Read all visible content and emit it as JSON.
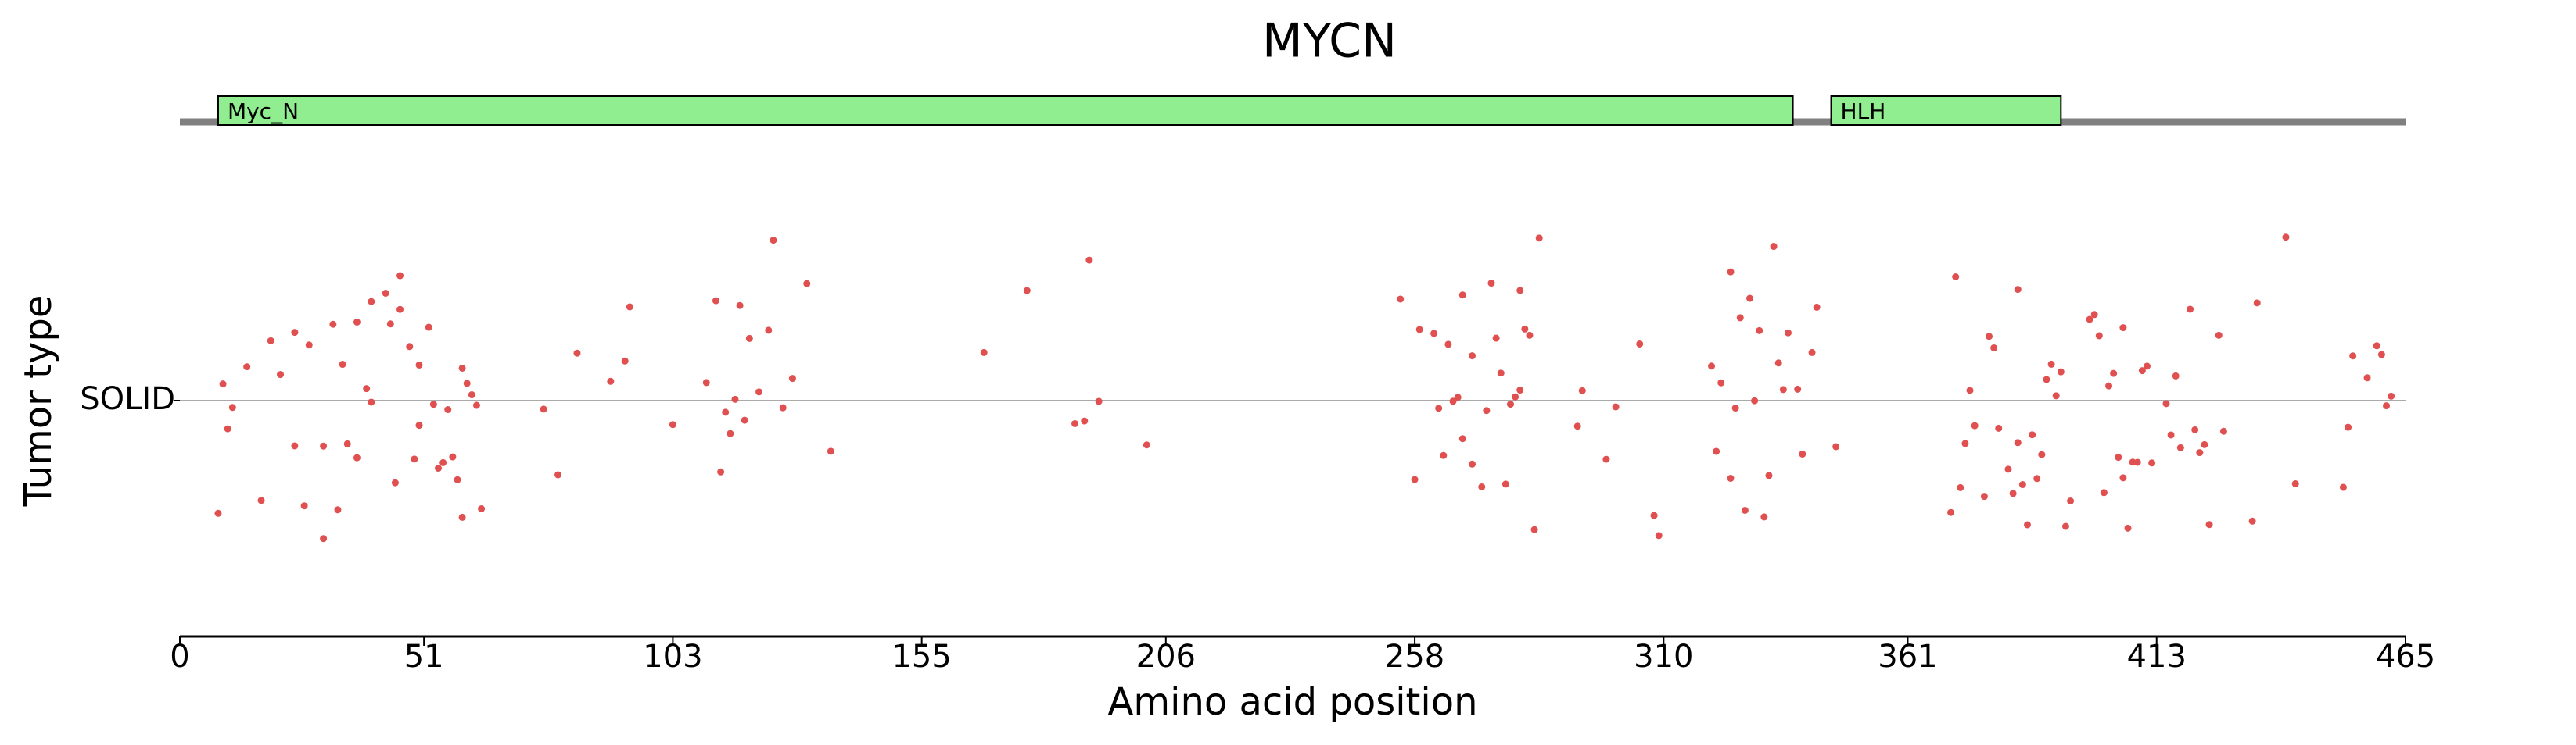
{
  "chart_data": {
    "type": "strip",
    "title": "MYCN",
    "xlabel": "Amino acid position",
    "ylabel": "Tumor type",
    "categories": [
      "SOLID"
    ],
    "xlim": [
      0,
      465
    ],
    "xticks": [
      0,
      51,
      103,
      155,
      206,
      258,
      310,
      361,
      413,
      465
    ],
    "backbone_color": "#808080",
    "domains": [
      {
        "name": "Myc_N",
        "start": 8,
        "end": 337,
        "color": "#90ee90"
      },
      {
        "name": "HLH",
        "start": 345,
        "end": 393,
        "color": "#90ee90"
      }
    ],
    "color": "#e05050",
    "x": [
      8,
      9,
      10,
      11,
      14,
      17,
      19,
      21,
      24,
      24,
      26,
      27,
      30,
      30,
      32,
      33,
      34,
      35,
      37,
      37,
      39,
      40,
      40,
      43,
      44,
      45,
      46,
      46,
      48,
      49,
      50,
      50,
      52,
      53,
      54,
      55,
      56,
      57,
      58,
      59,
      59,
      60,
      61,
      62,
      63,
      76,
      79,
      83,
      90,
      93,
      94,
      103,
      110,
      112,
      113,
      114,
      115,
      116,
      117,
      118,
      119,
      121,
      123,
      124,
      126,
      128,
      131,
      136,
      168,
      177,
      187,
      189,
      190,
      192,
      202,
      255,
      258,
      259,
      262,
      263,
      264,
      265,
      266,
      267,
      268,
      268,
      270,
      270,
      272,
      273,
      274,
      275,
      276,
      277,
      278,
      279,
      280,
      280,
      281,
      282,
      283,
      284,
      292,
      293,
      298,
      300,
      305,
      308,
      309,
      320,
      321,
      322,
      324,
      324,
      325,
      326,
      327,
      328,
      329,
      330,
      331,
      332,
      333,
      334,
      335,
      336,
      338,
      339,
      341,
      342,
      346,
      370,
      371,
      372,
      373,
      374,
      375,
      377,
      378,
      379,
      380,
      382,
      383,
      384,
      384,
      385,
      386,
      387,
      388,
      389,
      390,
      391,
      392,
      393,
      394,
      395,
      399,
      400,
      401,
      402,
      403,
      404,
      405,
      406,
      406,
      407,
      408,
      409,
      410,
      411,
      412,
      415,
      416,
      417,
      418,
      420,
      421,
      422,
      423,
      424,
      426,
      427,
      433,
      434,
      440,
      442,
      452,
      453,
      454,
      457,
      459,
      460,
      461,
      462
    ]
  }
}
